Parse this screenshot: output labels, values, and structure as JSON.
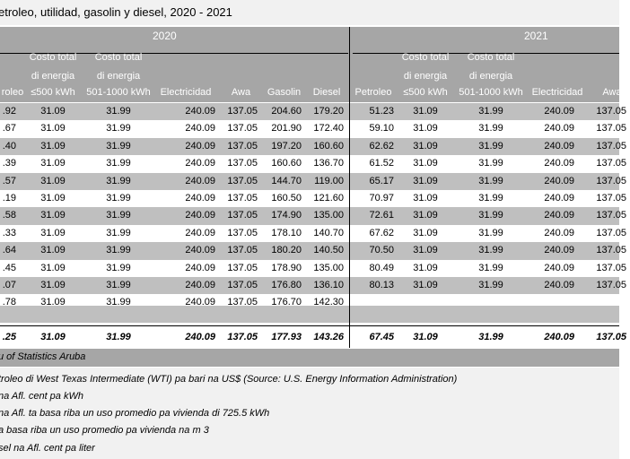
{
  "title": "etroleo, utilidad, gasolin y diesel, 2020 - 2021",
  "years": [
    "2020",
    "2021"
  ],
  "headers": {
    "left": [
      {
        "lines": [
          "",
          "",
          "roleo"
        ]
      },
      {
        "lines": [
          "Costo total",
          "di energia",
          "≤500 kWh"
        ]
      },
      {
        "lines": [
          "Costo total",
          "di energia",
          "501-1000 kWh"
        ]
      },
      {
        "lines": [
          "",
          "",
          "Electricidad"
        ]
      },
      {
        "lines": [
          "",
          "",
          "Awa"
        ]
      },
      {
        "lines": [
          "",
          "",
          "Gasolin"
        ]
      },
      {
        "lines": [
          "",
          "",
          "Diesel"
        ]
      }
    ],
    "right": [
      {
        "lines": [
          "",
          "",
          "Petroleo"
        ]
      },
      {
        "lines": [
          "Costo total",
          "di energia",
          "≤500 kWh"
        ]
      },
      {
        "lines": [
          "Costo total",
          "di energia",
          "501-1000 kWh"
        ]
      },
      {
        "lines": [
          "",
          "",
          "Electricidad"
        ]
      },
      {
        "lines": [
          "",
          "",
          "Awa"
        ]
      }
    ]
  },
  "rows": [
    {
      "l": [
        ".92",
        "31.09",
        "31.99",
        "240.09",
        "137.05",
        "204.60",
        "179.20"
      ],
      "r": [
        "51.23",
        "31.09",
        "31.99",
        "240.09",
        "137.05"
      ]
    },
    {
      "l": [
        ".67",
        "31.09",
        "31.99",
        "240.09",
        "137.05",
        "201.90",
        "172.40"
      ],
      "r": [
        "59.10",
        "31.09",
        "31.99",
        "240.09",
        "137.05"
      ]
    },
    {
      "l": [
        ".40",
        "31.09",
        "31.99",
        "240.09",
        "137.05",
        "197.20",
        "160.60"
      ],
      "r": [
        "62.62",
        "31.09",
        "31.99",
        "240.09",
        "137.05"
      ]
    },
    {
      "l": [
        ".39",
        "31.09",
        "31.99",
        "240.09",
        "137.05",
        "160.60",
        "136.70"
      ],
      "r": [
        "61.52",
        "31.09",
        "31.99",
        "240.09",
        "137.05"
      ]
    },
    {
      "l": [
        ".57",
        "31.09",
        "31.99",
        "240.09",
        "137.05",
        "144.70",
        "119.00"
      ],
      "r": [
        "65.17",
        "31.09",
        "31.99",
        "240.09",
        "137.05"
      ]
    },
    {
      "l": [
        ".19",
        "31.09",
        "31.99",
        "240.09",
        "137.05",
        "160.50",
        "121.60"
      ],
      "r": [
        "70.97",
        "31.09",
        "31.99",
        "240.09",
        "137.05"
      ]
    },
    {
      "l": [
        ".58",
        "31.09",
        "31.99",
        "240.09",
        "137.05",
        "174.90",
        "135.00"
      ],
      "r": [
        "72.61",
        "31.09",
        "31.99",
        "240.09",
        "137.05"
      ]
    },
    {
      "l": [
        ".33",
        "31.09",
        "31.99",
        "240.09",
        "137.05",
        "178.10",
        "140.70"
      ],
      "r": [
        "67.62",
        "31.09",
        "31.99",
        "240.09",
        "137.05"
      ]
    },
    {
      "l": [
        ".64",
        "31.09",
        "31.99",
        "240.09",
        "137.05",
        "180.20",
        "140.50"
      ],
      "r": [
        "70.50",
        "31.09",
        "31.99",
        "240.09",
        "137.05"
      ]
    },
    {
      "l": [
        ".45",
        "31.09",
        "31.99",
        "240.09",
        "137.05",
        "178.90",
        "135.00"
      ],
      "r": [
        "80.49",
        "31.09",
        "31.99",
        "240.09",
        "137.05"
      ]
    },
    {
      "l": [
        ".07",
        "31.09",
        "31.99",
        "240.09",
        "137.05",
        "176.80",
        "136.10"
      ],
      "r": [
        "80.13",
        "31.09",
        "31.99",
        "240.09",
        "137.05"
      ]
    },
    {
      "l": [
        ".78",
        "31.09",
        "31.99",
        "240.09",
        "137.05",
        "176.70",
        "142.30"
      ],
      "r": [
        "",
        "",
        "",
        "",
        ""
      ]
    }
  ],
  "totals": {
    "l": [
      ".25",
      "31.09",
      "31.99",
      "240.09",
      "137.05",
      "177.93",
      "143.26"
    ],
    "r": [
      "67.45",
      "31.09",
      "31.99",
      "240.09",
      "137.05"
    ]
  },
  "source": "u of Statistics Aruba",
  "notes": [
    "troleo  di West Texas Intermediate (WTI)  pa bari na US$ (Source: U.S. Energy Information Administration)",
    "na Afl. cent pa kWh",
    "na Afl. ta basa riba un uso promedio pa vivienda di 725.5 kWh",
    "a basa riba un uso promedio pa vivienda na m 3",
    "sel na Afl. cent pa liter"
  ]
}
